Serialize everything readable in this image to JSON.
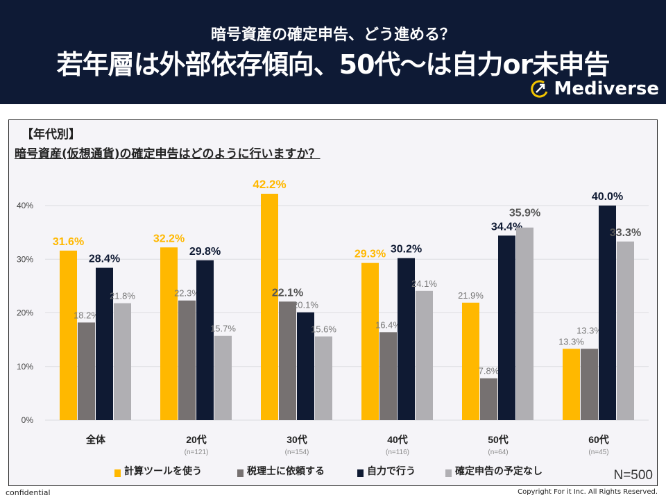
{
  "header": {
    "subtitle": "暗号資産の確定申告、どう進める？",
    "title": "若年層は外部依存傾向、50代～は自力or未申告",
    "logo": "Mediverse"
  },
  "chart_data": {
    "type": "bar",
    "tag": "【年代別】",
    "title": "暗号資産(仮想通貨)の確定申告はどのように行いますか？",
    "categories": [
      "全体",
      "20代",
      "30代",
      "40代",
      "50代",
      "60代"
    ],
    "category_n": [
      "",
      "(n=121)",
      "(n=154)",
      "(n=116)",
      "(n=64)",
      "(n=45)"
    ],
    "ylim": [
      0,
      40
    ],
    "yticks": [
      "0%",
      "10%",
      "20%",
      "30%",
      "40%"
    ],
    "grid": true,
    "legend_position": "bottom",
    "series": [
      {
        "name": "計算ツールを使う",
        "color": "#FFB800",
        "values": [
          31.6,
          32.2,
          42.2,
          29.3,
          21.9,
          13.3
        ]
      },
      {
        "name": "税理士に依頼する",
        "color": "#767171",
        "values": [
          18.2,
          22.3,
          22.1,
          16.4,
          7.8,
          13.3
        ]
      },
      {
        "name": "自力で行う",
        "color": "#0F1A33",
        "values": [
          28.4,
          29.8,
          20.1,
          30.2,
          34.4,
          40.0
        ]
      },
      {
        "name": "確定申告の予定なし",
        "color": "#B0AFB3",
        "values": [
          21.8,
          15.7,
          15.6,
          24.1,
          35.9,
          33.3
        ]
      }
    ],
    "sample_size": "N=500"
  },
  "footer": {
    "left": "confidential",
    "right": "Copyright For it Inc. All Rights Reserved."
  }
}
